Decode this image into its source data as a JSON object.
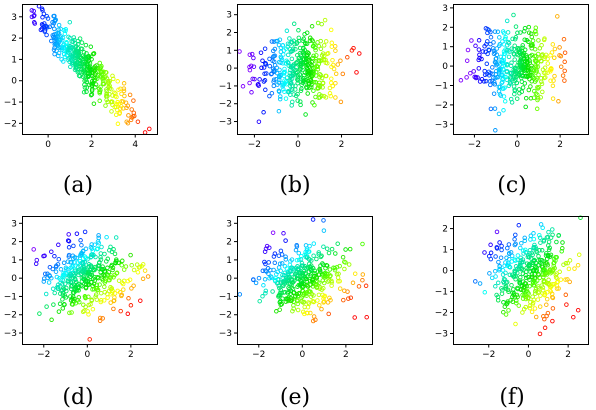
{
  "chart_data": [
    {
      "type": "scatter",
      "caption": "(a)",
      "title": "",
      "xlabel": "",
      "ylabel": "",
      "xlim": [
        -1.2,
        5.0
      ],
      "ylim": [
        -2.5,
        3.6
      ],
      "xticks": [
        0,
        2,
        4
      ],
      "yticks": [
        -2,
        -1,
        0,
        1,
        2,
        3
      ],
      "color_map": "rainbow (purple → blue → cyan → green → yellow → orange → red)",
      "n_points": 400,
      "distribution": "strong negative correlation; points spread along a diagonal band from about (-1, 3.4) down to (4.5, -2.2); color runs purple at upper-left to red at lower-right"
    },
    {
      "type": "scatter",
      "caption": "(b)",
      "title": "",
      "xlabel": "",
      "ylabel": "",
      "xlim": [
        -2.8,
        3.4
      ],
      "ylim": [
        -3.7,
        3.6
      ],
      "xticks": [
        -2,
        0,
        2
      ],
      "yticks": [
        -3,
        -2,
        -1,
        0,
        1,
        2,
        3
      ],
      "color_map": "rainbow (purple at left → red at right)",
      "n_points": 400,
      "distribution": "roughly circular cloud centered near (0, 0); color graded along x"
    },
    {
      "type": "scatter",
      "caption": "(c)",
      "title": "",
      "xlabel": "",
      "ylabel": "",
      "xlim": [
        -3.0,
        3.3
      ],
      "ylim": [
        -3.5,
        3.2
      ],
      "xticks": [
        -2,
        0,
        2
      ],
      "yticks": [
        -3,
        -2,
        -1,
        0,
        1,
        2,
        3
      ],
      "color_map": "rainbow (purple at left → red at right)",
      "n_points": 400,
      "distribution": "roughly circular cloud centered near (0, 0); color graded along x"
    },
    {
      "type": "scatter",
      "caption": "(d)",
      "title": "",
      "xlabel": "",
      "ylabel": "",
      "xlim": [
        -3.0,
        3.2
      ],
      "ylim": [
        -3.6,
        3.4
      ],
      "xticks": [
        -2,
        0,
        2
      ],
      "yticks": [
        -3,
        -2,
        -1,
        0,
        1,
        2,
        3
      ],
      "color_map": "rainbow (purple at upper-left → red at lower-right)",
      "n_points": 400,
      "distribution": "roughly circular cloud centered near (0, 0); color graded along the upper-left to lower-right diagonal"
    },
    {
      "type": "scatter",
      "caption": "(e)",
      "title": "",
      "xlabel": "",
      "ylabel": "",
      "xlim": [
        -3.0,
        3.2
      ],
      "ylim": [
        -3.6,
        3.4
      ],
      "xticks": [
        -2,
        0,
        2
      ],
      "yticks": [
        -3,
        -2,
        -1,
        0,
        1,
        2,
        3
      ],
      "color_map": "rainbow (purple at upper-left → red at lower-right)",
      "n_points": 400,
      "distribution": "roughly circular cloud centered near (0, 0); color graded along the upper-left to lower-right diagonal"
    },
    {
      "type": "scatter",
      "caption": "(f)",
      "title": "",
      "xlabel": "",
      "ylabel": "",
      "xlim": [
        -3.8,
        3.0
      ],
      "ylim": [
        -3.5,
        2.6
      ],
      "xticks": [
        -2,
        0,
        2
      ],
      "yticks": [
        -3,
        -2,
        -1,
        0,
        1,
        2
      ],
      "color_map": "rainbow (purple at upper-left → red at lower-right)",
      "n_points": 400,
      "distribution": "roughly circular cloud centered near (0, 0); color graded along the upper-left to lower-right diagonal"
    }
  ]
}
